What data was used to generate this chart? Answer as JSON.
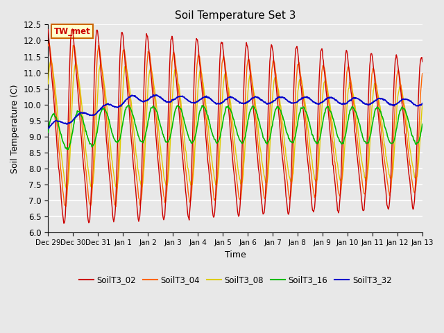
{
  "title": "Soil Temperature Set 3",
  "xlabel": "Time",
  "ylabel": "Soil Temperature (C)",
  "ylim": [
    6.0,
    12.5
  ],
  "yticks": [
    6.0,
    6.5,
    7.0,
    7.5,
    8.0,
    8.5,
    9.0,
    9.5,
    10.0,
    10.5,
    11.0,
    11.5,
    12.0,
    12.5
  ],
  "bg_color": "#e8e8e8",
  "plot_bg_color": "#e8e8e8",
  "grid_color": "#ffffff",
  "annotation_text": "TW_met",
  "annotation_color": "#cc0000",
  "annotation_bg": "#ffffcc",
  "annotation_border": "#cc6600",
  "series_colors": [
    "#cc0000",
    "#ff6600",
    "#ddcc00",
    "#00bb00",
    "#0000cc"
  ],
  "series_names": [
    "SoilT3_02",
    "SoilT3_04",
    "SoilT3_08",
    "SoilT3_16",
    "SoilT3_32"
  ],
  "legend_labels": [
    "SoilT3_02",
    "SoilT3_04",
    "SoilT3_08",
    "SoilT3_16",
    "SoilT3_32"
  ],
  "xtick_labels": [
    "Dec 29",
    "Dec 30",
    "Dec 31",
    "Jan 1",
    "Jan 2",
    "Jan 3",
    "Jan 4",
    "Jan 5",
    "Jan 6",
    "Jan 7",
    "Jan 8",
    "Jan 9",
    "Jan 10",
    "Jan 11",
    "Jan 12",
    "Jan 13"
  ],
  "n_days": 15,
  "pts_per_day": 48
}
